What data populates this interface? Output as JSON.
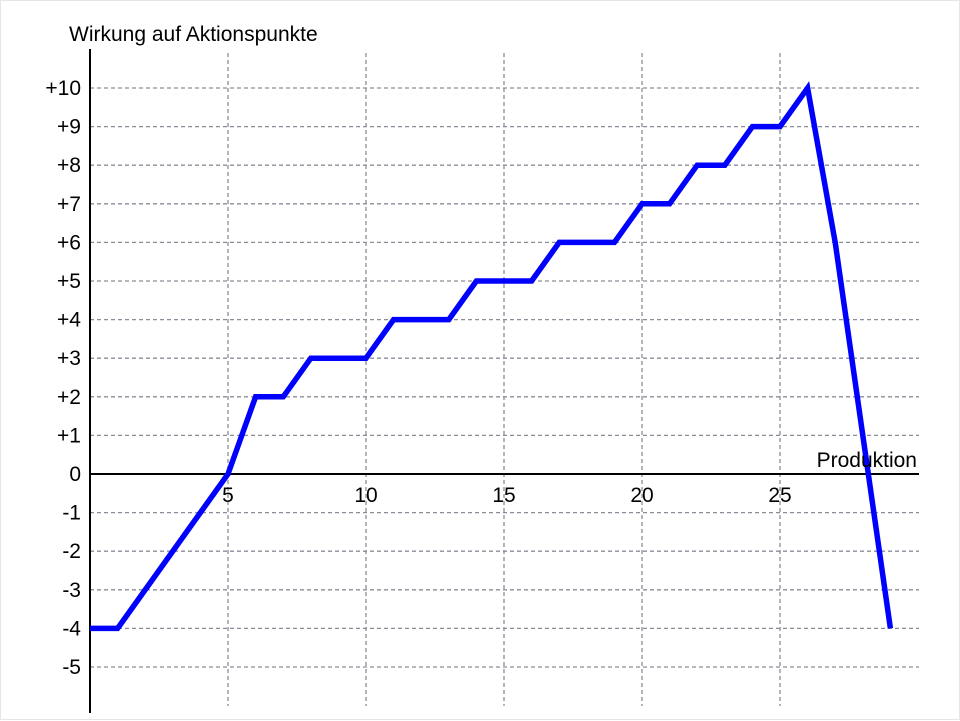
{
  "chart_data": {
    "type": "line",
    "ylabel": "Wirkung auf Aktionspunkte",
    "xlabel": "Produktion",
    "xlim": [
      0,
      30
    ],
    "ylim": [
      -6.4,
      11.3
    ],
    "grid": true,
    "x_ticks": [
      5,
      10,
      15,
      20,
      25
    ],
    "x_tick_labels": [
      "5",
      "10",
      "15",
      "20",
      "25"
    ],
    "y_ticks": [
      10,
      9,
      8,
      7,
      6,
      5,
      4,
      3,
      2,
      1,
      0,
      -1,
      -2,
      -3,
      -4,
      -5
    ],
    "y_tick_labels": [
      "+10",
      "+9",
      "+8",
      "+7",
      "+6",
      "+5",
      "+4",
      "+3",
      "+2",
      "+1",
      "0",
      "-1",
      "-2",
      "-3",
      "-4",
      "-5"
    ],
    "series": [
      {
        "color": "#0000ff",
        "x": [
          0,
          1,
          5,
          6,
          7,
          8,
          10,
          11,
          13,
          14,
          16,
          17,
          19,
          20,
          21,
          22,
          23,
          24,
          25,
          26,
          27,
          29
        ],
        "y": [
          -4,
          -4,
          0,
          2,
          2,
          3,
          3,
          4,
          4,
          5,
          5,
          6,
          6,
          7,
          7,
          8,
          8,
          9,
          9,
          10,
          6,
          -4
        ]
      }
    ]
  }
}
